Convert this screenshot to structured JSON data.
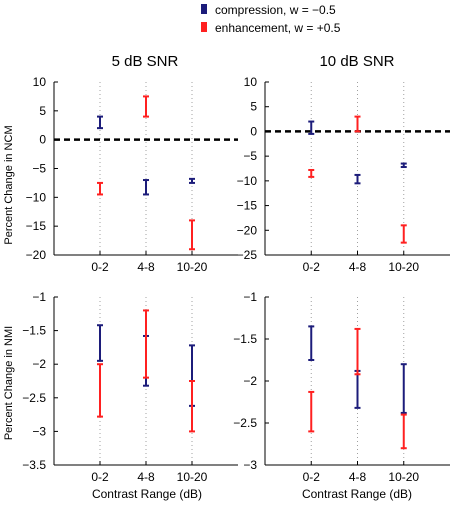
{
  "legend": [
    {
      "label": "compression,  w = −0.5",
      "color": "#1c1c7a"
    },
    {
      "label": "enhancement, w = +0.5",
      "color": "#ff2020"
    }
  ],
  "colors": {
    "compression": "#1c1c7a",
    "enhancement": "#ff2020",
    "axis": "#000000",
    "grid": "#a0a0a0",
    "refline": "#000000"
  },
  "ylabels": {
    "ncm": "Percent Change in NCM",
    "nmi": "Percent Change in NMI"
  },
  "xlabel": "Contrast Range (dB)",
  "chart_data": [
    {
      "type": "errorbar",
      "title": "5 dB SNR",
      "categories": [
        "0-2",
        "4-8",
        "10-20"
      ],
      "ylim": [
        -20,
        10
      ],
      "yticks": [
        -20,
        -15,
        -10,
        -5,
        0,
        5,
        10
      ],
      "refline": 0,
      "grid": true,
      "series": [
        {
          "name": "compression,  w = −0.5",
          "color": "#1c1c7a",
          "ranges": [
            [
              2,
              4
            ],
            [
              -9.5,
              -7
            ],
            [
              -7.5,
              -6.8
            ]
          ]
        },
        {
          "name": "enhancement, w = +0.5",
          "color": "#ff2020",
          "ranges": [
            [
              -9.5,
              -7.5
            ],
            [
              4,
              7.5
            ],
            [
              -19,
              -14
            ]
          ]
        }
      ]
    },
    {
      "type": "errorbar",
      "title": "10 dB SNR",
      "categories": [
        "0-2",
        "4-8",
        "10-20"
      ],
      "ylim": [
        -25,
        10
      ],
      "yticks": [
        -25,
        -20,
        -15,
        -10,
        -5,
        0,
        5,
        10
      ],
      "refline": 0,
      "grid": true,
      "series": [
        {
          "name": "compression,  w = −0.5",
          "color": "#1c1c7a",
          "ranges": [
            [
              -0.5,
              2
            ],
            [
              -10.5,
              -8.8
            ],
            [
              -7.2,
              -6.5
            ]
          ]
        },
        {
          "name": "enhancement, w = +0.5",
          "color": "#ff2020",
          "ranges": [
            [
              -9.2,
              -7.8
            ],
            [
              0,
              3
            ],
            [
              -22.5,
              -19
            ]
          ]
        }
      ]
    },
    {
      "type": "errorbar",
      "title": "",
      "categories": [
        "0-2",
        "4-8",
        "10-20"
      ],
      "ylim": [
        -3.5,
        -1
      ],
      "yticks": [
        -3.5,
        -3,
        -2.5,
        -2,
        -1.5,
        -1
      ],
      "grid": true,
      "series": [
        {
          "name": "compression,  w = −0.5",
          "color": "#1c1c7a",
          "ranges": [
            [
              -1.95,
              -1.42
            ],
            [
              -2.32,
              -1.58
            ],
            [
              -2.62,
              -1.72
            ]
          ]
        },
        {
          "name": "enhancement, w = +0.5",
          "color": "#ff2020",
          "ranges": [
            [
              -2.78,
              -2.0
            ],
            [
              -2.2,
              -1.2
            ],
            [
              -3.0,
              -2.25
            ]
          ]
        }
      ]
    },
    {
      "type": "errorbar",
      "title": "",
      "categories": [
        "0-2",
        "4-8",
        "10-20"
      ],
      "ylim": [
        -3,
        -1
      ],
      "yticks": [
        -3,
        -2.5,
        -2,
        -1.5,
        -1
      ],
      "grid": true,
      "series": [
        {
          "name": "compression,  w = −0.5",
          "color": "#1c1c7a",
          "ranges": [
            [
              -1.75,
              -1.35
            ],
            [
              -2.32,
              -1.88
            ],
            [
              -2.38,
              -1.8
            ]
          ]
        },
        {
          "name": "enhancement, w = +0.5",
          "color": "#ff2020",
          "ranges": [
            [
              -2.6,
              -2.13
            ],
            [
              -1.92,
              -1.38
            ],
            [
              -2.8,
              -2.4
            ]
          ]
        }
      ]
    }
  ]
}
